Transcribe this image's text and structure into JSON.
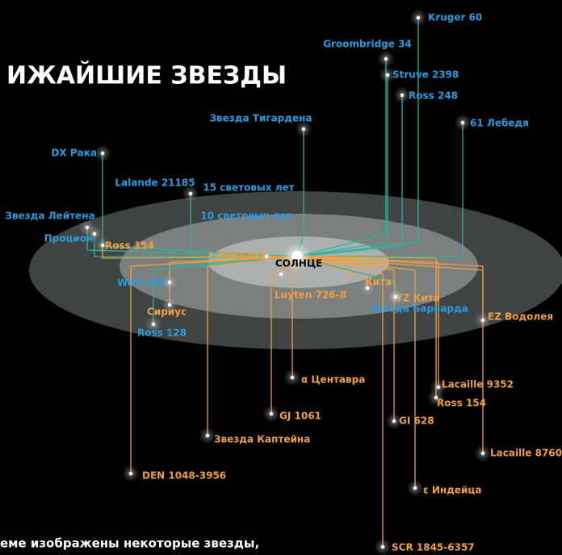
{
  "title": "ИЖАЙШИЕ ЗВЕЗДЫ",
  "caption": "еме изображены некоторые звезды,",
  "sun": "СОЛНЦЕ",
  "rings": [
    "15 световых лет",
    "10 световых лет"
  ],
  "stars": [
    {
      "label": "Kruger 60",
      "color": "#2b9be0"
    },
    {
      "label": "Groombridge 34",
      "color": "#2b9be0"
    },
    {
      "label": "Struve 2398",
      "color": "#2b9be0"
    },
    {
      "label": "Ross 248",
      "color": "#2b9be0"
    },
    {
      "label": "61 Лебедя",
      "color": "#2b9be0"
    },
    {
      "label": "Звезда Тигардена",
      "color": "#2b9be0"
    },
    {
      "label": "DX Рака",
      "color": "#2b9be0"
    },
    {
      "label": "Lalande 21185",
      "color": "#2b9be0"
    },
    {
      "label": "Звезда Лейтена",
      "color": "#2b9be0"
    },
    {
      "label": "Процион",
      "color": "#2b9be0"
    },
    {
      "label": "Ross 154",
      "color": "#f0a040"
    },
    {
      "label": "ε Эридана",
      "color": "#f0a040"
    },
    {
      "label": "Wolf 359",
      "color": "#2b9be0"
    },
    {
      "label": "Сириус",
      "color": "#f0a040"
    },
    {
      "label": "Ross 128",
      "color": "#2b9be0"
    },
    {
      "label": "Luyten 726-8",
      "color": "#f0a040"
    },
    {
      "label": "Кита",
      "color": "#f0a040"
    },
    {
      "label": "YZ Кита",
      "color": "#f0a040"
    },
    {
      "label": "Звезда Барнарда",
      "color": "#2b9be0"
    },
    {
      "label": "EZ Водолея",
      "color": "#f0a040"
    },
    {
      "label": "α Центавра",
      "color": "#f0a040"
    },
    {
      "label": "Lacaille 9352",
      "color": "#f0a040"
    },
    {
      "label": "Ross 154",
      "color": "#f0a040"
    },
    {
      "label": "GJ 1061",
      "color": "#f0a040"
    },
    {
      "label": "GI 628",
      "color": "#f0a040"
    },
    {
      "label": "Звезда Каптейна",
      "color": "#f0a040"
    },
    {
      "label": "Lacaille 8760",
      "color": "#f0a040"
    },
    {
      "label": "DEN 1048-3956",
      "color": "#f0a040"
    },
    {
      "label": "ε Индейца",
      "color": "#f0a040"
    },
    {
      "label": "SCR 1845-6357",
      "color": "#f0a040"
    }
  ]
}
